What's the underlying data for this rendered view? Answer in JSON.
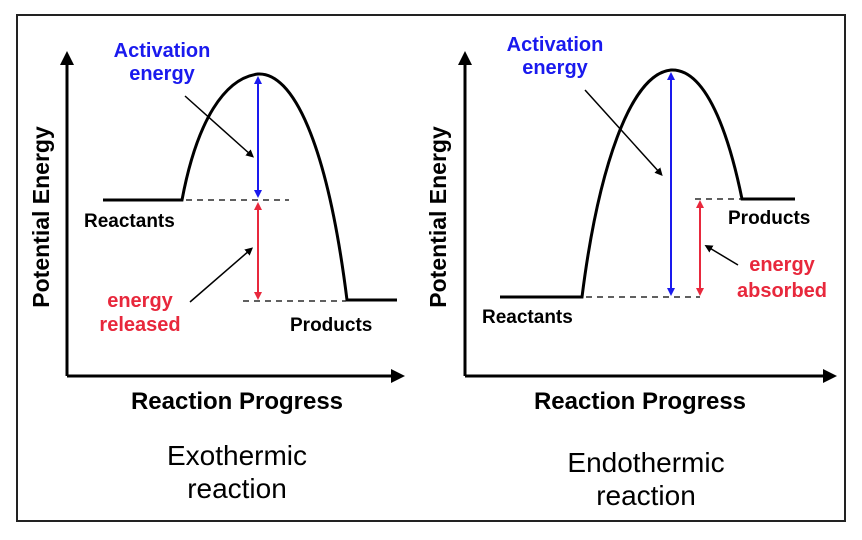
{
  "colors": {
    "activation": "#1a1aee",
    "energy": "#e8283c",
    "line": "#000000",
    "dashed": "#000000"
  },
  "diagrams": [
    {
      "id": "exothermic",
      "activation_label_line1": "Activation",
      "activation_label_line2": "energy",
      "energy_label_line1": "energy",
      "energy_label_line2": "released",
      "reactants_label": "Reactants",
      "products_label": "Products",
      "y_axis_label": "Potential Energy",
      "x_axis_label": "Reaction Progress",
      "caption_line1": "Exothermic",
      "caption_line2": "reaction"
    },
    {
      "id": "endothermic",
      "activation_label_line1": "Activation",
      "activation_label_line2": "energy",
      "energy_label_line1": "energy",
      "energy_label_line2": "absorbed",
      "reactants_label": "Reactants",
      "products_label": "Products",
      "y_axis_label": "Potential Energy",
      "x_axis_label": "Reaction Progress",
      "caption_line1": "Endothermic",
      "caption_line2": "reaction"
    }
  ]
}
